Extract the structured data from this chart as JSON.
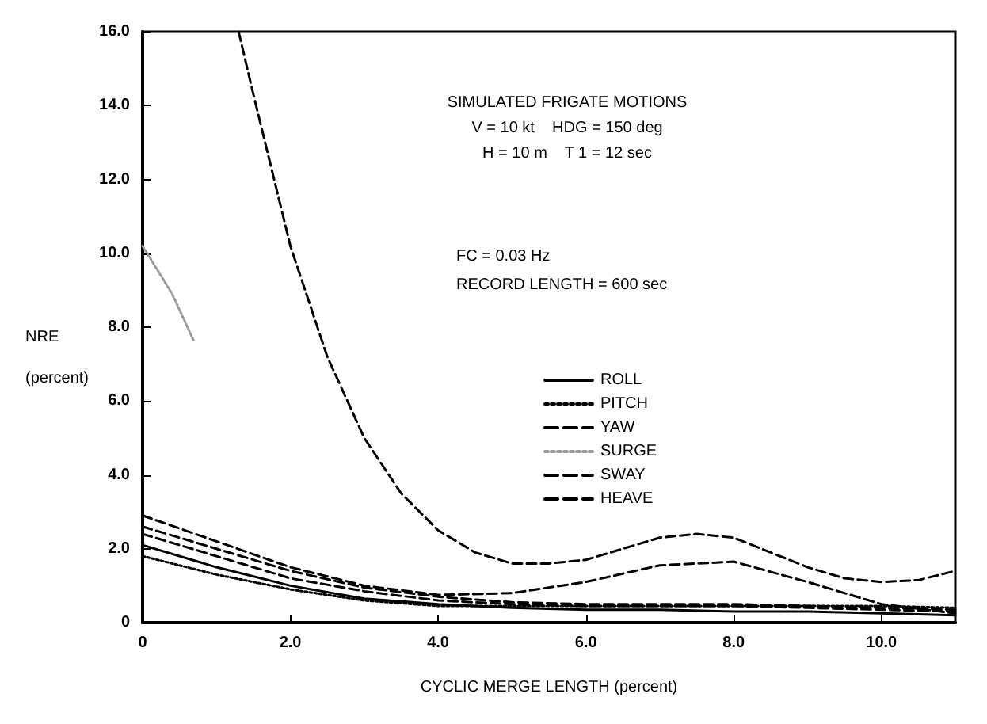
{
  "chart_data": {
    "type": "line",
    "xlabel": "CYCLIC MERGE LENGTH (percent)",
    "ylabel": "NRE (percent)",
    "annotations": [
      "SIMULATED FRIGATE MOTIONS",
      "V = 10 kt    HDG = 150 deg",
      "H = 10 m    T 1 = 12 sec",
      "FC = 0.03 Hz",
      "RECORD LENGTH = 600 sec"
    ],
    "x": [
      0,
      1,
      2,
      3,
      4,
      5,
      6,
      7,
      8,
      9,
      10,
      11
    ],
    "xlim": [
      0,
      11
    ],
    "ylim": [
      0,
      16
    ],
    "xticks": [
      0,
      {
        "value": 2,
        "label": "2.0"
      },
      {
        "value": 4,
        "label": "4.0"
      },
      {
        "value": 6,
        "label": "6.0"
      },
      {
        "value": 8,
        "label": "8.0"
      },
      {
        "value": 10,
        "label": "10.0"
      }
    ],
    "yticks": [
      0,
      {
        "value": 2,
        "label": "2.0"
      },
      {
        "value": 4,
        "label": "4.0"
      },
      {
        "value": 6,
        "label": "6.0"
      },
      {
        "value": 8,
        "label": "8.0"
      },
      {
        "value": 10,
        "label": "10.0"
      },
      {
        "value": 12,
        "label": "12.0"
      },
      {
        "value": 14,
        "label": "14.0"
      },
      {
        "value": 16,
        "label": "16.0"
      }
    ],
    "grid": false,
    "legend": "center",
    "marker": "none",
    "series": [
      {
        "name": "ROLL",
        "color": "#000000",
        "line_style": "solid",
        "values": [
          2.1,
          1.5,
          1.0,
          0.65,
          0.5,
          0.4,
          0.35,
          0.35,
          0.3,
          0.3,
          0.25,
          0.2
        ]
      },
      {
        "name": "PITCH",
        "color": "#000000",
        "line_style": "dotted",
        "values": [
          1.8,
          1.3,
          0.9,
          0.6,
          0.45,
          0.45,
          0.45,
          0.45,
          0.45,
          0.45,
          0.45,
          0.4
        ]
      },
      {
        "name": "YAW",
        "color": "#000000",
        "line_style": "dashed",
        "values": [
          2.6,
          2.0,
          1.4,
          0.95,
          0.7,
          0.55,
          0.5,
          0.5,
          0.5,
          0.45,
          0.4,
          0.35
        ]
      },
      {
        "name": "SURGE",
        "color": "#999999",
        "line_style": "dotted",
        "x": [
          0,
          0.4,
          0.7
        ],
        "values": [
          10.2,
          8.9,
          7.6
        ]
      },
      {
        "name": "SWAY",
        "color": "#000000",
        "line_style": "dashed",
        "values": [
          2.9,
          2.2,
          1.5,
          1.0,
          0.75,
          0.8,
          1.1,
          1.55,
          1.65,
          1.1,
          0.5,
          0.25
        ]
      },
      {
        "name": "HEAVE",
        "color": "#000000",
        "line_style": "dashed",
        "x": [
          1.3,
          1.5,
          2,
          2.5,
          3,
          3.5,
          4,
          4.5,
          5,
          5.5,
          6,
          6.5,
          7,
          7.5,
          8,
          8.5,
          9,
          9.5,
          10,
          10.5,
          11
        ],
        "values": [
          16,
          14.3,
          10.2,
          7.2,
          5.0,
          3.5,
          2.5,
          1.9,
          1.6,
          1.6,
          1.7,
          2.0,
          2.3,
          2.4,
          2.3,
          1.9,
          1.5,
          1.2,
          1.1,
          1.15,
          1.4
        ]
      },
      {
        "color": "#000000",
        "line_style": "dashed",
        "values": [
          2.4,
          1.8,
          1.2,
          0.85,
          0.6,
          0.5,
          0.45,
          0.45,
          0.45,
          0.4,
          0.35,
          0.3
        ]
      }
    ]
  }
}
